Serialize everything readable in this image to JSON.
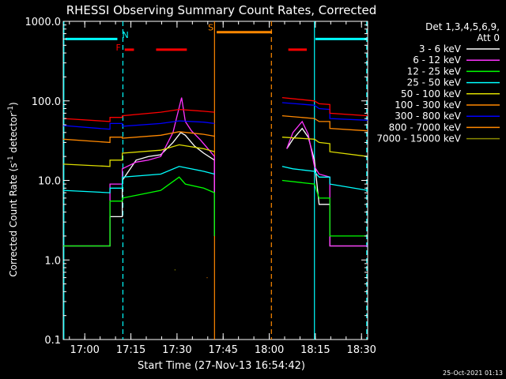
{
  "chart_data": {
    "type": "line",
    "title": "RHESSI Observing Summary Count Rates, Corrected",
    "xlabel": "Start Time (27-Nov-13 16:54:42)",
    "ylabel_main": "Corrected Count Rate (s",
    "ylabel_sup1": "-1",
    "ylabel_mid": " detector",
    "ylabel_sup2": "-1",
    "ylabel_end": ")",
    "yscale": "log",
    "ylim": [
      0.1,
      1000
    ],
    "y_ticks": [
      {
        "value": 0.1,
        "label": "0.1"
      },
      {
        "value": 1,
        "label": "1.0"
      },
      {
        "value": 10,
        "label": "10.0"
      },
      {
        "value": 100,
        "label": "100.0"
      },
      {
        "value": 1000,
        "label": "1000.0"
      }
    ],
    "xlim_minutes": [
      -1.7,
      97.3
    ],
    "x_ticks": [
      {
        "minutes": 5.3,
        "label": "17:00"
      },
      {
        "minutes": 20.3,
        "label": "17:15"
      },
      {
        "minutes": 35.3,
        "label": "17:30"
      },
      {
        "minutes": 50.3,
        "label": "17:45"
      },
      {
        "minutes": 65.3,
        "label": "18:00"
      },
      {
        "minutes": 80.3,
        "label": "18:15"
      },
      {
        "minutes": 95.3,
        "label": "18:30"
      }
    ],
    "legend": {
      "header1": "Det 1,3,4,5,6,9,",
      "header2": "Att 0",
      "placement": "right"
    },
    "series": [
      {
        "name": "3 - 6 keV",
        "color": "#ffffff",
        "segments": [
          [
            [
              -1.7,
              1.5
            ],
            [
              13.5,
              1.5
            ],
            [
              13.5,
              3.5
            ],
            [
              17.5,
              3.5
            ],
            [
              17.5,
              10
            ],
            [
              22,
              18
            ],
            [
              26,
              20
            ],
            [
              30,
              21
            ],
            [
              34,
              30
            ],
            [
              36.5,
              40
            ],
            [
              38,
              37
            ],
            [
              41,
              27
            ],
            [
              44,
              22
            ],
            [
              47.5,
              18
            ],
            [
              47.5,
              2
            ]
          ],
          [
            [
              71,
              25
            ],
            [
              73,
              33
            ],
            [
              76,
              45
            ],
            [
              78,
              35
            ],
            [
              80,
              18
            ],
            [
              81.5,
              5
            ],
            [
              85,
              5
            ],
            [
              85,
              1.5
            ],
            [
              97.3,
              1.5
            ]
          ]
        ]
      },
      {
        "name": "6 - 12 keV",
        "color": "#ff33ff",
        "segments": [
          [
            [
              -1.7,
              1.5
            ],
            [
              13.5,
              1.5
            ],
            [
              13.5,
              9
            ],
            [
              17.5,
              9
            ],
            [
              17.5,
              14
            ],
            [
              22,
              17
            ],
            [
              26,
              18
            ],
            [
              30,
              20
            ],
            [
              34,
              40
            ],
            [
              36.8,
              110
            ],
            [
              38,
              55
            ],
            [
              40,
              42
            ],
            [
              43,
              32
            ],
            [
              45,
              26
            ],
            [
              47.5,
              20
            ],
            [
              47.5,
              2
            ]
          ],
          [
            [
              71,
              25
            ],
            [
              73,
              40
            ],
            [
              76,
              55
            ],
            [
              78,
              38
            ],
            [
              80,
              15
            ],
            [
              81.5,
              12
            ],
            [
              85,
              11
            ],
            [
              85,
              1.5
            ],
            [
              97.3,
              1.5
            ]
          ]
        ]
      },
      {
        "name": "12 - 25 keV",
        "color": "#00ff00",
        "segments": [
          [
            [
              -1.7,
              1.5
            ],
            [
              13.5,
              1.5
            ],
            [
              13.5,
              5.5
            ],
            [
              17.5,
              5.5
            ],
            [
              17.5,
              6
            ],
            [
              30,
              7.5
            ],
            [
              36,
              11
            ],
            [
              38,
              9
            ],
            [
              44,
              8
            ],
            [
              47.5,
              7
            ],
            [
              47.5,
              2
            ]
          ],
          [
            [
              69.5,
              10
            ],
            [
              80,
              9
            ],
            [
              81.5,
              6
            ],
            [
              85,
              6
            ],
            [
              85,
              2
            ],
            [
              97.3,
              2
            ]
          ]
        ]
      },
      {
        "name": "25 - 50 keV",
        "color": "#00ffff",
        "segments": [
          [
            [
              -1.7,
              7.5
            ],
            [
              13.5,
              7
            ],
            [
              13.5,
              8
            ],
            [
              17.5,
              8
            ],
            [
              17.5,
              11
            ],
            [
              30,
              12
            ],
            [
              36,
              15
            ],
            [
              44,
              13
            ],
            [
              47.5,
              12
            ]
          ],
          [
            [
              69.5,
              15
            ],
            [
              73,
              14
            ],
            [
              80,
              13
            ],
            [
              81.5,
              11
            ],
            [
              85,
              11
            ],
            [
              85,
              9
            ],
            [
              97.3,
              7.5
            ]
          ]
        ]
      },
      {
        "name": "50 - 100 keV",
        "color": "#dddd00",
        "segments": [
          [
            [
              -1.7,
              16
            ],
            [
              13.5,
              15
            ],
            [
              13.5,
              18
            ],
            [
              17.5,
              18
            ],
            [
              17.5,
              22
            ],
            [
              30,
              24
            ],
            [
              36,
              28
            ],
            [
              44,
              25
            ],
            [
              47.5,
              23
            ]
          ],
          [
            [
              69.5,
              35
            ],
            [
              80,
              33
            ],
            [
              81.5,
              30
            ],
            [
              85,
              29
            ],
            [
              85,
              23
            ],
            [
              97.3,
              20
            ]
          ]
        ]
      },
      {
        "name": "100 - 300 keV",
        "color": "#ff8800",
        "segments": [
          [
            [
              -1.7,
              33
            ],
            [
              13.5,
              30
            ],
            [
              13.5,
              35
            ],
            [
              17.5,
              35
            ],
            [
              17.5,
              34
            ],
            [
              30,
              37
            ],
            [
              36,
              41
            ],
            [
              44,
              38
            ],
            [
              47.5,
              36
            ]
          ],
          [
            [
              69.5,
              65
            ],
            [
              80,
              60
            ],
            [
              81.5,
              55
            ],
            [
              85,
              55
            ],
            [
              85,
              45
            ],
            [
              97.3,
              42
            ]
          ]
        ]
      },
      {
        "name": "300 - 800 keV",
        "color": "#0000ff",
        "segments": [
          [
            [
              -1.7,
              49
            ],
            [
              13.5,
              44
            ],
            [
              13.5,
              52
            ],
            [
              17.5,
              52
            ],
            [
              17.5,
              48
            ],
            [
              30,
              52
            ],
            [
              36,
              56
            ],
            [
              44,
              54
            ],
            [
              47.5,
              52
            ]
          ],
          [
            [
              69.5,
              95
            ],
            [
              80,
              88
            ],
            [
              81.5,
              80
            ],
            [
              85,
              78
            ],
            [
              85,
              60
            ],
            [
              97.3,
              57
            ]
          ]
        ]
      },
      {
        "name": "800 - 7000 keV",
        "color": "#ff8800",
        "segments": [
          [
            [
              45,
              0.6
            ],
            [
              45.2,
              0.6
            ]
          ]
        ]
      },
      {
        "name": "7000 - 15000 keV",
        "color": "#888800",
        "segments": [
          [
            [
              34.5,
              0.75
            ],
            [
              34.8,
              0.75
            ]
          ]
        ]
      }
    ],
    "red_trace_color": "#ff0000",
    "red_trace": [
      [
        [
          -1.7,
          60
        ],
        [
          13.5,
          55
        ],
        [
          13.5,
          62
        ],
        [
          17.5,
          62
        ],
        [
          17.5,
          65
        ],
        [
          30,
          72
        ],
        [
          36,
          78
        ],
        [
          44,
          74
        ],
        [
          47.5,
          72
        ]
      ],
      [
        [
          69.5,
          110
        ],
        [
          80,
          100
        ],
        [
          81.5,
          92
        ],
        [
          85,
          90
        ],
        [
          85,
          70
        ],
        [
          97.3,
          65
        ]
      ]
    ],
    "orange_lines": [
      {
        "minutes": 47.5,
        "style": "solid"
      },
      {
        "minutes": 66.0,
        "style": "dashed"
      }
    ],
    "cyan_lines": [
      {
        "minutes": -1.5,
        "style": "solid"
      },
      {
        "minutes": 17.7,
        "style": "dashed"
      },
      {
        "minutes": 80.0,
        "style": "solid"
      },
      {
        "minutes": 97.0,
        "style": "dashed"
      }
    ],
    "flag_bars": [
      {
        "label": "N",
        "color": "#00ffff",
        "value": 600,
        "start": -1.0,
        "end": 15.9
      },
      {
        "label": "F",
        "color": "#ff0000",
        "value": 440,
        "start": 18.3,
        "end": 21.3
      },
      {
        "label": "",
        "color": "#ff0000",
        "value": 440,
        "start": 28.5,
        "end": 38.5
      },
      {
        "label": "S",
        "color": "#ff8800",
        "value": 730,
        "start": 48.2,
        "end": 66.2
      },
      {
        "label": "",
        "color": "#ff0000",
        "value": 440,
        "start": 71.5,
        "end": 77.5
      },
      {
        "label": "",
        "color": "#00ffff",
        "value": 600,
        "start": 80.3,
        "end": 97.3
      }
    ],
    "flag_labels": [
      {
        "text": "N",
        "color": "#00ffff",
        "minutes": 18.5,
        "value": 620
      },
      {
        "text": "F",
        "color": "#ff0000",
        "minutes": 16.2,
        "value": 430
      },
      {
        "text": "S",
        "color": "#ff8800",
        "minutes": 46.3,
        "value": 770
      }
    ]
  },
  "footer": {
    "timestamp": "25-Oct-2021 01:13"
  }
}
